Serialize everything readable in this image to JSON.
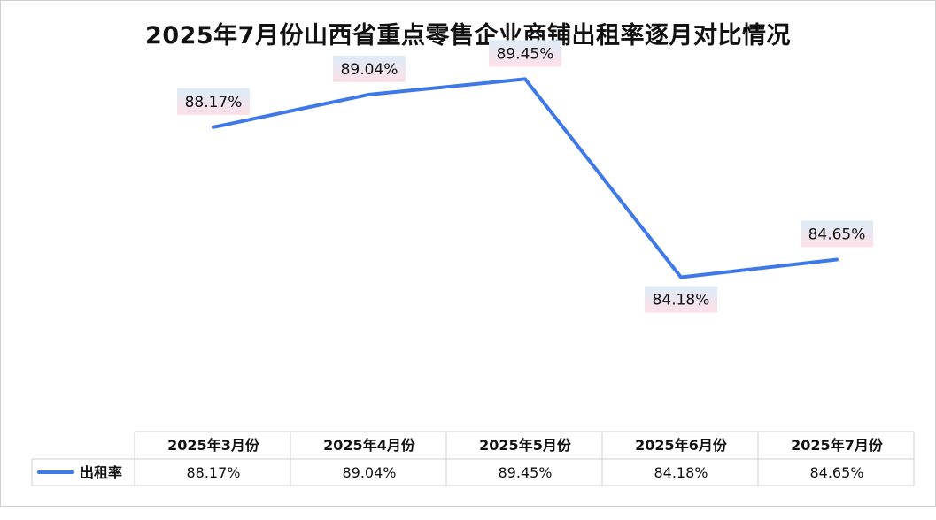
{
  "chart_data": {
    "type": "line",
    "title": "2025年7月份山西省重点零售企业商铺出租率逐月对比情况",
    "categories": [
      "2025年3月份",
      "2025年4月份",
      "2025年5月份",
      "2025年6月份",
      "2025年7月份"
    ],
    "series": [
      {
        "name": "出租率",
        "values": [
          88.17,
          89.04,
          89.45,
          84.18,
          84.65
        ],
        "labels": [
          "88.17%",
          "89.04%",
          "89.45%",
          "84.18%",
          "84.65%"
        ],
        "color": "#3f78e8"
      }
    ],
    "ylim": [
      80.1,
      91.2
    ],
    "data_table": true,
    "grid": false
  }
}
